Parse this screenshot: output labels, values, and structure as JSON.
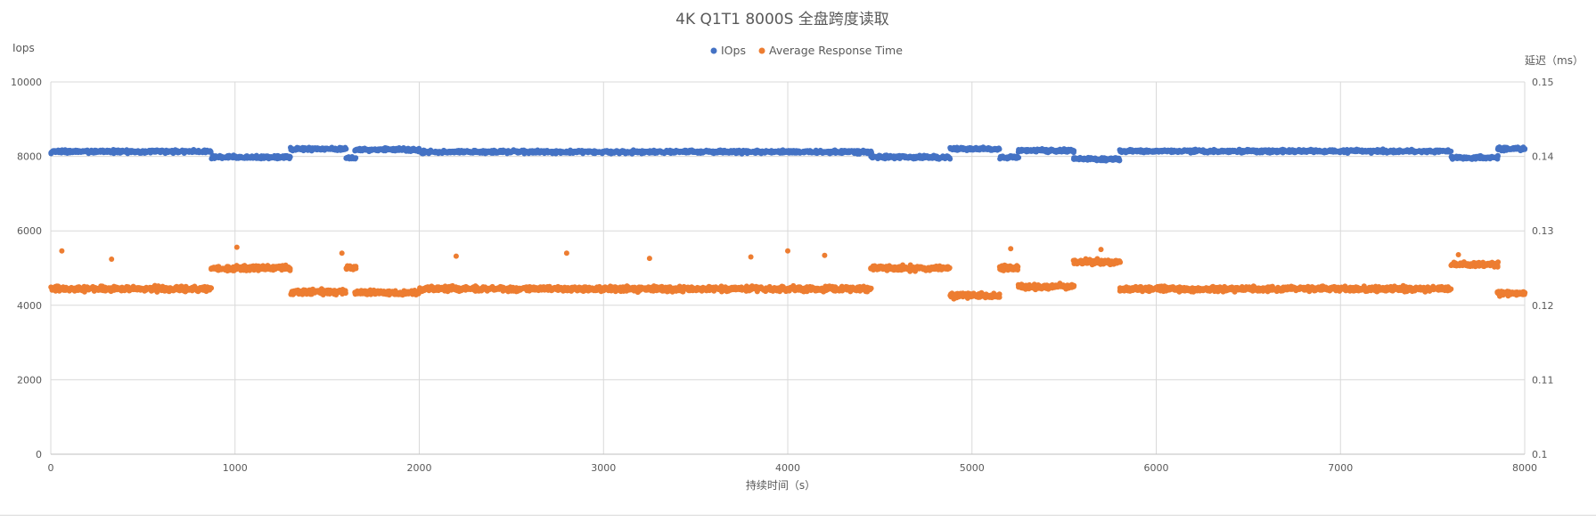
{
  "chart_data": {
    "type": "scatter",
    "title": "4K Q1T1 8000S 全盘跨度读取",
    "xlabel": "持续时间（s）",
    "ylabel_left": "Iops",
    "ylabel_right": "延迟（ms）",
    "xlim": [
      0,
      8000
    ],
    "ylim_left": [
      0,
      10000
    ],
    "ylim_right": [
      0.1,
      0.15
    ],
    "x_ticks": [
      "0",
      "1000",
      "2000",
      "3000",
      "4000",
      "5000",
      "6000",
      "7000",
      "8000"
    ],
    "y_left_ticks": [
      "0",
      "2000",
      "4000",
      "6000",
      "8000",
      "10000"
    ],
    "y_right_ticks": [
      "0.1",
      "0.11",
      "0.12",
      "0.13",
      "0.14",
      "0.15"
    ],
    "grid": true,
    "legend_position": "top-center",
    "series": [
      {
        "name": "IOps",
        "axis": "left",
        "color": "#4472C4",
        "segments": [
          {
            "x": [
              0,
              870
            ],
            "y": 8130
          },
          {
            "x": [
              870,
              1300
            ],
            "y": 7980
          },
          {
            "x": [
              1300,
              1600
            ],
            "y": 8200
          },
          {
            "x": [
              1600,
              1650
            ],
            "y": 7950
          },
          {
            "x": [
              1650,
              2000
            ],
            "y": 8180
          },
          {
            "x": [
              2000,
              4450
            ],
            "y": 8120
          },
          {
            "x": [
              4450,
              4880
            ],
            "y": 7980
          },
          {
            "x": [
              4880,
              5150
            ],
            "y": 8200
          },
          {
            "x": [
              5150,
              5250
            ],
            "y": 7970
          },
          {
            "x": [
              5250,
              5550
            ],
            "y": 8160
          },
          {
            "x": [
              5550,
              5800
            ],
            "y": 7930
          },
          {
            "x": [
              5800,
              7600
            ],
            "y": 8140
          },
          {
            "x": [
              7600,
              7850
            ],
            "y": 7970
          },
          {
            "x": [
              7850,
              8000
            ],
            "y": 8200
          }
        ]
      },
      {
        "name": "Average Response Time",
        "axis": "right",
        "color": "#ED7D31",
        "segments": [
          {
            "x": [
              0,
              870
            ],
            "y": 0.1222
          },
          {
            "x": [
              870,
              1300
            ],
            "y": 0.125
          },
          {
            "x": [
              1300,
              1600
            ],
            "y": 0.1218
          },
          {
            "x": [
              1600,
              1650
            ],
            "y": 0.125
          },
          {
            "x": [
              1650,
              2000
            ],
            "y": 0.1217
          },
          {
            "x": [
              2000,
              4450
            ],
            "y": 0.1222
          },
          {
            "x": [
              4450,
              4880
            ],
            "y": 0.125
          },
          {
            "x": [
              4880,
              5150
            ],
            "y": 0.1213
          },
          {
            "x": [
              5150,
              5250
            ],
            "y": 0.125
          },
          {
            "x": [
              5250,
              5550
            ],
            "y": 0.1225
          },
          {
            "x": [
              5550,
              5800
            ],
            "y": 0.1258
          },
          {
            "x": [
              5800,
              7600
            ],
            "y": 0.1222
          },
          {
            "x": [
              7600,
              7850
            ],
            "y": 0.1255
          },
          {
            "x": [
              7850,
              8000
            ],
            "y": 0.1216
          }
        ],
        "outliers": [
          {
            "x": 60,
            "y": 0.1273
          },
          {
            "x": 330,
            "y": 0.1262
          },
          {
            "x": 1010,
            "y": 0.1278
          },
          {
            "x": 1580,
            "y": 0.127
          },
          {
            "x": 2200,
            "y": 0.1266
          },
          {
            "x": 2800,
            "y": 0.127
          },
          {
            "x": 3250,
            "y": 0.1263
          },
          {
            "x": 3800,
            "y": 0.1265
          },
          {
            "x": 4000,
            "y": 0.1273
          },
          {
            "x": 4200,
            "y": 0.1267
          },
          {
            "x": 5210,
            "y": 0.1276
          },
          {
            "x": 5700,
            "y": 0.1275
          },
          {
            "x": 7640,
            "y": 0.1268
          }
        ]
      }
    ]
  }
}
